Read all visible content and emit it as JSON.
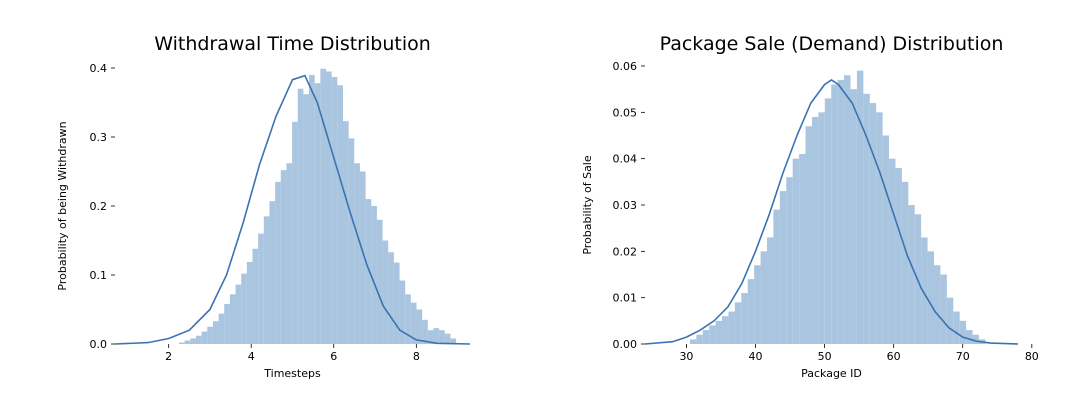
{
  "chart_data": [
    {
      "type": "histogram",
      "title": "Withdrawal Time Distribution",
      "xlabel": "Timesteps",
      "ylabel": "Probability of being Withdrawn",
      "xlim": [
        0.7,
        9.3
      ],
      "ylim": [
        0,
        0.4
      ],
      "xticks": [
        2,
        4,
        6,
        8
      ],
      "yticks": [
        0.0,
        0.1,
        0.2,
        0.3,
        0.4
      ],
      "ytick_format": 1,
      "bar_color": "#a9c5df",
      "line_color": "#3a73b2",
      "bins": {
        "start": 2.25,
        "width": 0.137,
        "values": [
          0.002,
          0.005,
          0.008,
          0.012,
          0.018,
          0.025,
          0.033,
          0.044,
          0.058,
          0.072,
          0.086,
          0.102,
          0.119,
          0.138,
          0.16,
          0.185,
          0.207,
          0.235,
          0.252,
          0.262,
          0.322,
          0.37,
          0.362,
          0.39,
          0.378,
          0.399,
          0.395,
          0.387,
          0.375,
          0.323,
          0.298,
          0.262,
          0.25,
          0.21,
          0.2,
          0.18,
          0.15,
          0.133,
          0.118,
          0.092,
          0.072,
          0.06,
          0.05,
          0.035,
          0.02,
          0.023,
          0.02,
          0.015,
          0.008
        ]
      },
      "kde": {
        "x": [
          0.7,
          1.5,
          2.0,
          2.5,
          3.0,
          3.4,
          3.8,
          4.2,
          4.6,
          5.0,
          5.3,
          5.6,
          6.0,
          6.4,
          6.8,
          7.2,
          7.6,
          8.0,
          8.5,
          9.3
        ],
        "y": [
          0.0,
          0.002,
          0.008,
          0.02,
          0.05,
          0.1,
          0.175,
          0.26,
          0.33,
          0.383,
          0.389,
          0.35,
          0.27,
          0.19,
          0.115,
          0.055,
          0.02,
          0.006,
          0.001,
          0.0
        ]
      }
    },
    {
      "type": "histogram",
      "title": "Package Sale (Demand) Distribution",
      "xlabel": "Package ID",
      "ylabel": "Probability of Sale",
      "xlim": [
        24,
        78
      ],
      "ylim": [
        0,
        0.06
      ],
      "xticks": [
        30,
        40,
        50,
        60,
        70,
        80
      ],
      "yticks": [
        0.0,
        0.01,
        0.02,
        0.03,
        0.04,
        0.05,
        0.06
      ],
      "ytick_format": 2,
      "bar_color": "#a9c5df",
      "line_color": "#3a73b2",
      "bins": {
        "start": 30.5,
        "width": 0.93,
        "values": [
          0.001,
          0.002,
          0.003,
          0.004,
          0.005,
          0.006,
          0.007,
          0.009,
          0.011,
          0.014,
          0.017,
          0.02,
          0.023,
          0.029,
          0.033,
          0.036,
          0.04,
          0.041,
          0.047,
          0.049,
          0.05,
          0.053,
          0.056,
          0.057,
          0.058,
          0.055,
          0.059,
          0.054,
          0.052,
          0.05,
          0.045,
          0.04,
          0.038,
          0.035,
          0.03,
          0.028,
          0.023,
          0.02,
          0.017,
          0.015,
          0.01,
          0.007,
          0.005,
          0.003,
          0.002,
          0.001
        ]
      },
      "kde": {
        "x": [
          24,
          28,
          30,
          32,
          34,
          36,
          38,
          40,
          42,
          44,
          46,
          48,
          50,
          51,
          52,
          54,
          56,
          58,
          60,
          62,
          64,
          66,
          68,
          70,
          72,
          74,
          78
        ],
        "y": [
          0.0,
          0.0005,
          0.0015,
          0.003,
          0.005,
          0.008,
          0.013,
          0.02,
          0.028,
          0.037,
          0.045,
          0.052,
          0.056,
          0.057,
          0.056,
          0.052,
          0.045,
          0.037,
          0.028,
          0.019,
          0.012,
          0.007,
          0.0035,
          0.0015,
          0.0006,
          0.0002,
          0.0
        ]
      }
    }
  ]
}
